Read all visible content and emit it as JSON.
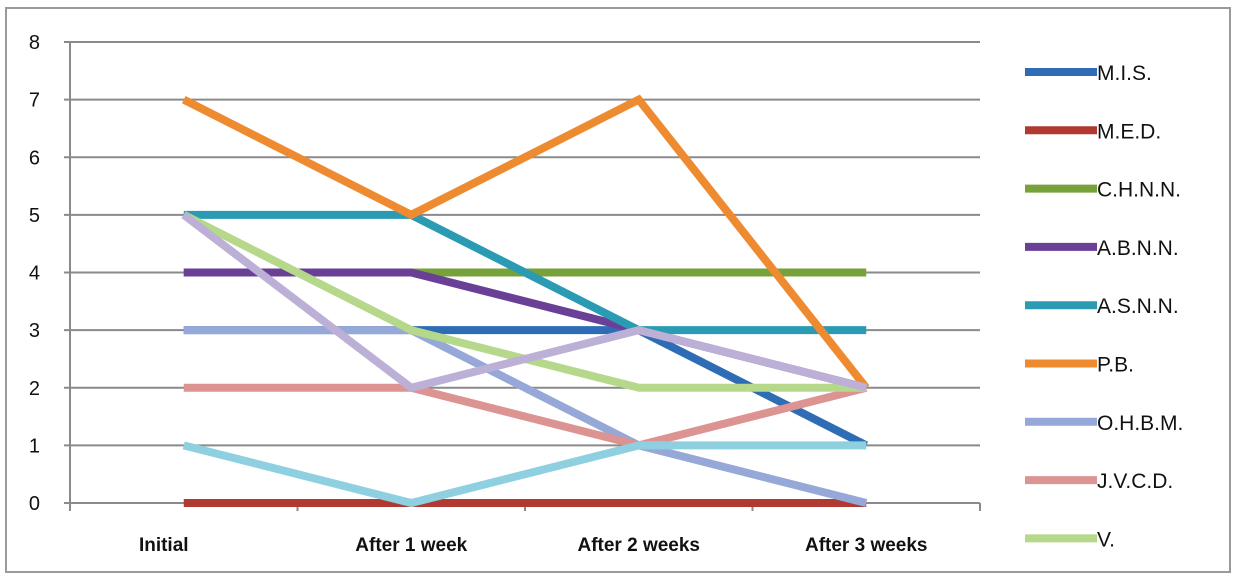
{
  "chart_data": {
    "type": "line",
    "categories": [
      "Initial",
      "After 1 week",
      "After 2 weeks",
      "After 3 weeks"
    ],
    "ylim": [
      0,
      8
    ],
    "yticks": [
      0,
      1,
      2,
      3,
      4,
      5,
      6,
      7,
      8
    ],
    "grid": true,
    "legend_position": "right",
    "title": "",
    "xlabel": "",
    "ylabel": "",
    "series": [
      {
        "name": "M.I.S.",
        "color": "#2e6db5",
        "values": [
          3,
          3,
          3,
          1
        ]
      },
      {
        "name": "M.E.D.",
        "color": "#b03a32",
        "values": [
          0,
          0,
          0,
          0
        ]
      },
      {
        "name": "C.H.N.N.",
        "color": "#77a23a",
        "values": [
          4,
          4,
          4,
          4
        ]
      },
      {
        "name": "A.B.N.N.",
        "color": "#6a3f96",
        "values": [
          4,
          4,
          3,
          2
        ]
      },
      {
        "name": "A.S.N.N.",
        "color": "#2b9bb3",
        "values": [
          5,
          5,
          3,
          3
        ]
      },
      {
        "name": "P.B.",
        "color": "#ee8a2f",
        "values": [
          7,
          5,
          7,
          2
        ]
      },
      {
        "name": "O.H.B.M.",
        "color": "#95a8d8",
        "values": [
          3,
          3,
          1,
          0
        ]
      },
      {
        "name": "J.V.C.D.",
        "color": "#dc9492",
        "values": [
          2,
          2,
          1,
          2
        ]
      },
      {
        "name": "V.",
        "color": "#b5d88b",
        "values": [
          5,
          3,
          2,
          2
        ]
      },
      {
        "name": "",
        "color": "#bdb0d7",
        "values": [
          5,
          2,
          3,
          2
        ]
      },
      {
        "name": "",
        "color": "#8fd0e0",
        "values": [
          1,
          0,
          1,
          1
        ]
      }
    ]
  }
}
